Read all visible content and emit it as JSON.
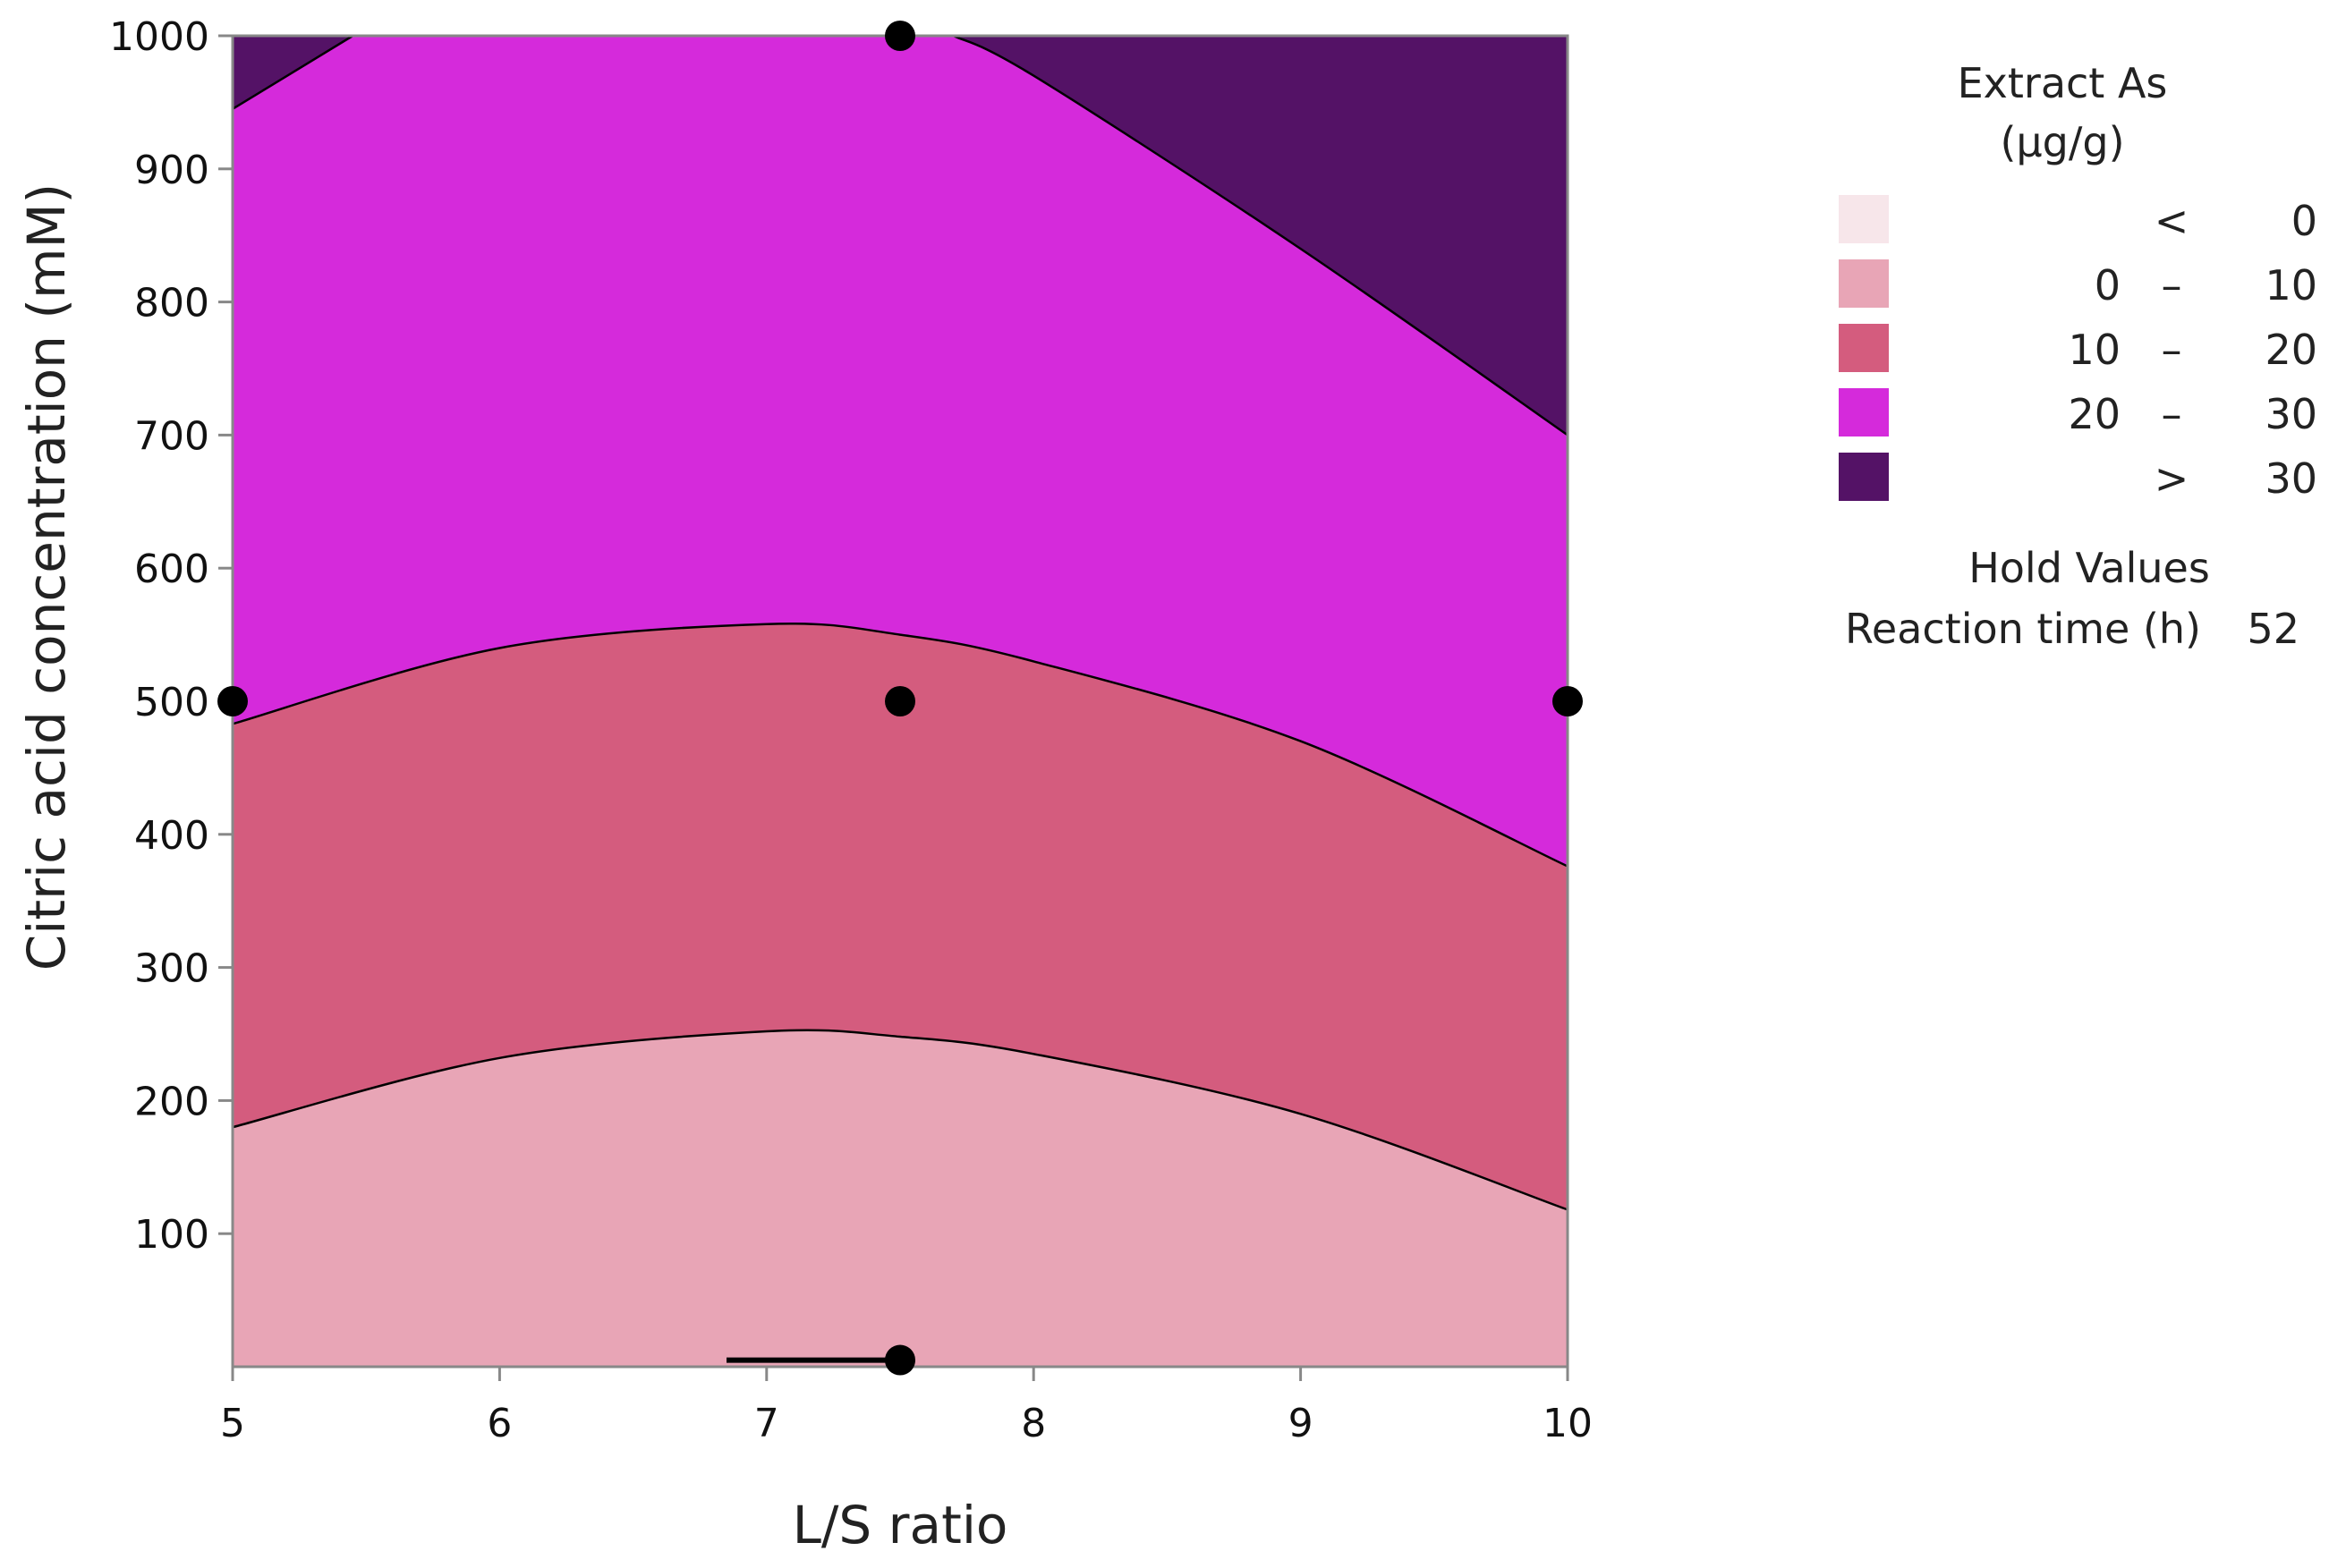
{
  "chart_data": {
    "type": "contour",
    "xlabel": "L/S ratio",
    "ylabel": "Citric acid concentration (mM)",
    "xlim": [
      5,
      10
    ],
    "ylim": [
      0,
      1000
    ],
    "x_ticks": [
      5,
      6,
      7,
      8,
      9,
      10
    ],
    "y_ticks": [
      100,
      200,
      300,
      400,
      500,
      600,
      700,
      800,
      900,
      1000
    ],
    "legend": {
      "title_line1": "Extract As",
      "title_line2": "(μg/g)",
      "items": [
        {
          "low": "",
          "op": "<",
          "high": "0",
          "color": "#f7e6ea"
        },
        {
          "low": "0",
          "op": "–",
          "high": "10",
          "color": "#e8a5b6"
        },
        {
          "low": "10",
          "op": "–",
          "high": "20",
          "color": "#d45c7e"
        },
        {
          "low": "20",
          "op": "–",
          "high": "30",
          "color": "#d52adb"
        },
        {
          "low": "",
          "op": ">",
          "high": "30",
          "color": "#541266"
        }
      ]
    },
    "hold_values": {
      "title": "Hold Values",
      "label": "Reaction time (h)",
      "value": "52"
    },
    "contour_lines": [
      {
        "level": 10,
        "points": [
          [
            5,
            180
          ],
          [
            6,
            232
          ],
          [
            7,
            252
          ],
          [
            7.5,
            248
          ],
          [
            8,
            235
          ],
          [
            9,
            190
          ],
          [
            10,
            118
          ]
        ]
      },
      {
        "level": 20,
        "points": [
          [
            5,
            483
          ],
          [
            6,
            540
          ],
          [
            7,
            558
          ],
          [
            7.5,
            550
          ],
          [
            8,
            530
          ],
          [
            9,
            470
          ],
          [
            10,
            376
          ]
        ]
      },
      {
        "level": 30,
        "points": [
          [
            5,
            945
          ],
          [
            5.45,
            1000
          ]
        ]
      },
      {
        "level": 30,
        "points": [
          [
            7.7,
            1000
          ],
          [
            8,
            970
          ],
          [
            9,
            840
          ],
          [
            10,
            700
          ]
        ]
      },
      {
        "level": 0,
        "points": [
          [
            6.85,
            5
          ],
          [
            7.5,
            5
          ]
        ]
      }
    ],
    "design_points": [
      {
        "x": 5,
        "y": 500
      },
      {
        "x": 7.5,
        "y": 1000
      },
      {
        "x": 7.5,
        "y": 500
      },
      {
        "x": 7.5,
        "y": 5
      },
      {
        "x": 10,
        "y": 500
      }
    ]
  }
}
